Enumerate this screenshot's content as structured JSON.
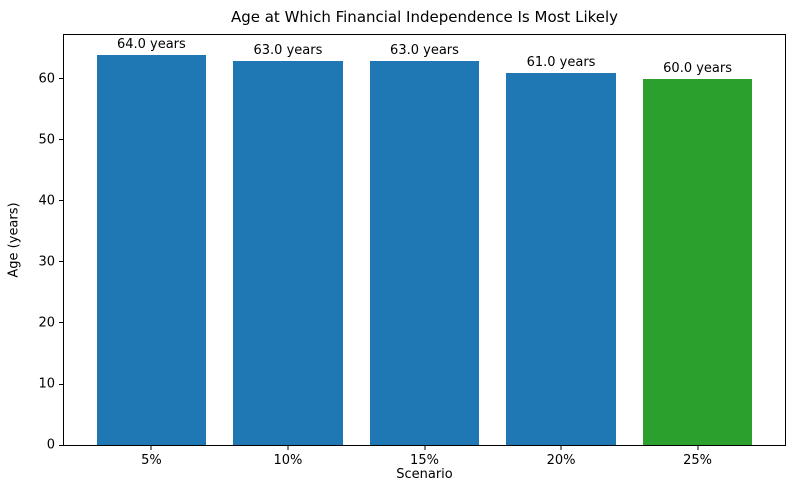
{
  "figure": {
    "title": "Age at Which Financial Independence Is Most Likely"
  },
  "chart_data": {
    "type": "bar",
    "title": "Age at Which Financial Independence Is Most Likely",
    "xlabel": "Scenario",
    "ylabel": "Age (years)",
    "categories": [
      "5%",
      "10%",
      "15%",
      "20%",
      "25%"
    ],
    "values": [
      64.0,
      63.0,
      63.0,
      61.0,
      60.0
    ],
    "bar_labels": [
      "64.0 years",
      "63.0 years",
      "63.0 years",
      "61.0 years",
      "60.0 years"
    ],
    "bar_colors": [
      "#1f77b4",
      "#1f77b4",
      "#1f77b4",
      "#1f77b4",
      "#2ca02c"
    ],
    "ylim": [
      0,
      67.2
    ],
    "yticks": [
      0,
      10,
      20,
      30,
      40,
      50,
      60
    ],
    "grid": false,
    "legend": "none",
    "bar_width_fraction": 0.8,
    "x_edge_margin_units": 0.24
  },
  "colors": {
    "bar_default": "#1f77b4",
    "bar_highlight": "#2ca02c",
    "axis": "#000000",
    "text": "#000000",
    "background": "#ffffff"
  }
}
